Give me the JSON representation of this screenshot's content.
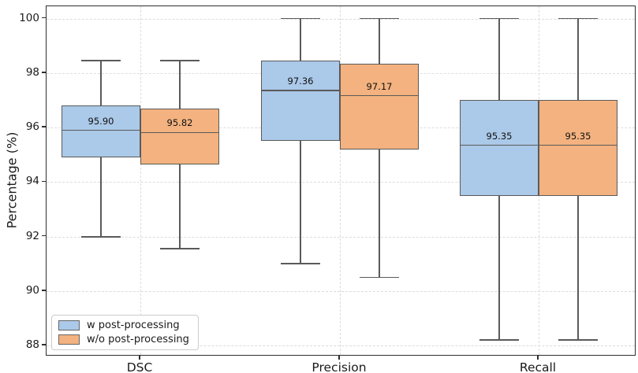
{
  "chart_data": {
    "type": "boxplot",
    "title": "",
    "xlabel": "",
    "ylabel": "Percentage (%)",
    "categories": [
      "DSC",
      "Precision",
      "Recall"
    ],
    "yticks": [
      "100",
      "98",
      "96",
      "94",
      "92",
      "90",
      "88"
    ],
    "ytick_values": [
      100,
      98,
      96,
      94,
      92,
      90,
      88
    ],
    "ylim": [
      87.6,
      100.45
    ],
    "grid": "dashed gridlines on both axes",
    "legend_position": "lower left",
    "series": [
      {
        "name": "w post-processing",
        "color": "#abc9e8",
        "boxes": [
          {
            "category": "DSC",
            "whisker_low": 92.0,
            "q1": 94.9,
            "median": 95.9,
            "q3": 96.8,
            "whisker_high": 98.45,
            "median_label": "95.90"
          },
          {
            "category": "Precision",
            "whisker_low": 91.0,
            "q1": 95.5,
            "median": 97.36,
            "q3": 98.45,
            "whisker_high": 100.0,
            "median_label": "97.36"
          },
          {
            "category": "Recall",
            "whisker_low": 88.2,
            "q1": 93.5,
            "median": 95.35,
            "q3": 97.0,
            "whisker_high": 100.0,
            "median_label": "95.35"
          }
        ]
      },
      {
        "name": "w/o post-processing",
        "color": "#f3b27f",
        "boxes": [
          {
            "category": "DSC",
            "whisker_low": 91.55,
            "q1": 94.65,
            "median": 95.82,
            "q3": 96.7,
            "whisker_high": 98.45,
            "median_label": "95.82"
          },
          {
            "category": "Precision",
            "whisker_low": 90.5,
            "q1": 95.2,
            "median": 97.17,
            "q3": 98.35,
            "whisker_high": 100.0,
            "median_label": "97.17"
          },
          {
            "category": "Recall",
            "whisker_low": 88.2,
            "q1": 93.5,
            "median": 95.35,
            "q3": 97.0,
            "whisker_high": 100.0,
            "median_label": "95.35"
          }
        ]
      }
    ]
  }
}
